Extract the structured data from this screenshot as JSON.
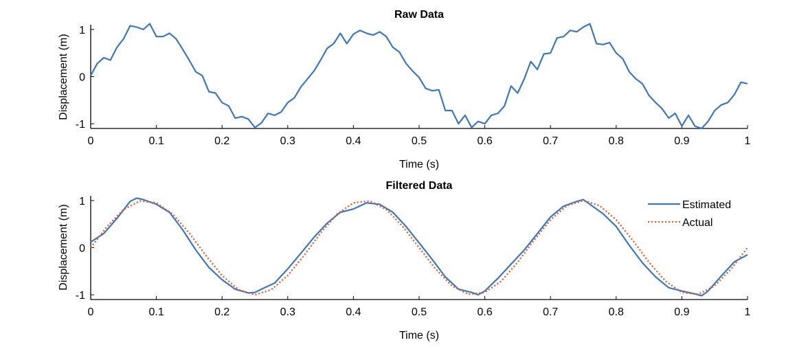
{
  "chart_data": [
    {
      "type": "line",
      "title": "Raw Data",
      "xlabel": "Time (s)",
      "ylabel": "Displacement (m)",
      "xlim": [
        0,
        1
      ],
      "ylim": [
        -1.1,
        1.1
      ],
      "xticks": [
        "0",
        "0.1",
        "0.2",
        "0.3",
        "0.4",
        "0.5",
        "0.6",
        "0.7",
        "0.8",
        "0.9",
        "1"
      ],
      "yticks": [
        "-1",
        "0",
        "1"
      ],
      "grid": false,
      "colors": {
        "series": "#3b76bf"
      },
      "series": [
        {
          "x": [
            0,
            0.01,
            0.02,
            0.03,
            0.04,
            0.05,
            0.06,
            0.07,
            0.08,
            0.09,
            0.1,
            0.11,
            0.12,
            0.13,
            0.14,
            0.15,
            0.16,
            0.17,
            0.18,
            0.19,
            0.2,
            0.21,
            0.22,
            0.23,
            0.24,
            0.25,
            0.26,
            0.27,
            0.28,
            0.29,
            0.3,
            0.31,
            0.32,
            0.33,
            0.34,
            0.35,
            0.36,
            0.37,
            0.38,
            0.39,
            0.4,
            0.41,
            0.42,
            0.43,
            0.44,
            0.45,
            0.46,
            0.47,
            0.48,
            0.49,
            0.5,
            0.51,
            0.52,
            0.53,
            0.54,
            0.55,
            0.56,
            0.57,
            0.58,
            0.59,
            0.6,
            0.61,
            0.62,
            0.63,
            0.64,
            0.65,
            0.66,
            0.67,
            0.68,
            0.69,
            0.7,
            0.71,
            0.72,
            0.73,
            0.74,
            0.75,
            0.76,
            0.77,
            0.78,
            0.79,
            0.8,
            0.81,
            0.82,
            0.83,
            0.84,
            0.85,
            0.86,
            0.87,
            0.88,
            0.89,
            0.9,
            0.91,
            0.92,
            0.93,
            0.94,
            0.95,
            0.96,
            0.97,
            0.98,
            0.99,
            1.0
          ],
          "y": [
            0.02,
            0.28,
            0.4,
            0.35,
            0.62,
            0.8,
            1.08,
            1.05,
            1.0,
            1.12,
            0.85,
            0.85,
            0.92,
            0.8,
            0.58,
            0.35,
            0.1,
            0.02,
            -0.32,
            -0.35,
            -0.55,
            -0.62,
            -0.88,
            -0.85,
            -0.9,
            -1.08,
            -0.98,
            -0.78,
            -0.82,
            -0.75,
            -0.55,
            -0.45,
            -0.22,
            -0.05,
            0.12,
            0.35,
            0.6,
            0.7,
            0.92,
            0.7,
            0.9,
            0.98,
            0.92,
            0.88,
            0.95,
            0.85,
            0.62,
            0.52,
            0.28,
            0.12,
            -0.02,
            -0.25,
            -0.3,
            -0.28,
            -0.72,
            -0.72,
            -1.0,
            -0.82,
            -1.08,
            -0.95,
            -1.0,
            -0.82,
            -0.78,
            -0.62,
            -0.2,
            -0.35,
            -0.05,
            0.32,
            0.15,
            0.48,
            0.5,
            0.82,
            0.85,
            0.98,
            0.95,
            1.05,
            1.12,
            0.7,
            0.68,
            0.72,
            0.5,
            0.38,
            0.1,
            -0.05,
            -0.15,
            -0.4,
            -0.55,
            -0.68,
            -0.88,
            -0.78,
            -1.05,
            -0.82,
            -1.05,
            -1.1,
            -0.95,
            -0.72,
            -0.6,
            -0.55,
            -0.38,
            -0.12,
            -0.15
          ]
        }
      ]
    },
    {
      "type": "line",
      "title": "Filtered Data",
      "xlabel": "Time (s)",
      "ylabel": "Displacement (m)",
      "xlim": [
        0,
        1
      ],
      "ylim": [
        -1.1,
        1.1
      ],
      "xticks": [
        "0",
        "0.1",
        "0.2",
        "0.3",
        "0.4",
        "0.5",
        "0.6",
        "0.7",
        "0.8",
        "0.9",
        "1"
      ],
      "yticks": [
        "-1",
        "0",
        "1"
      ],
      "grid": false,
      "legend": {
        "position": "top-right"
      },
      "series": [
        {
          "name": "Estimated",
          "color": "#3b76bf",
          "style": "solid",
          "x": [
            0,
            0.02,
            0.04,
            0.06,
            0.07,
            0.08,
            0.1,
            0.12,
            0.14,
            0.16,
            0.18,
            0.2,
            0.22,
            0.24,
            0.25,
            0.26,
            0.28,
            0.3,
            0.32,
            0.34,
            0.36,
            0.38,
            0.4,
            0.42,
            0.44,
            0.46,
            0.48,
            0.5,
            0.52,
            0.54,
            0.56,
            0.58,
            0.59,
            0.6,
            0.62,
            0.64,
            0.66,
            0.68,
            0.7,
            0.72,
            0.74,
            0.75,
            0.76,
            0.78,
            0.8,
            0.82,
            0.84,
            0.86,
            0.88,
            0.9,
            0.92,
            0.93,
            0.94,
            0.96,
            0.98,
            1.0
          ],
          "y": [
            0.12,
            0.3,
            0.62,
            0.98,
            1.05,
            1.02,
            0.92,
            0.75,
            0.38,
            -0.05,
            -0.42,
            -0.68,
            -0.88,
            -0.96,
            -0.95,
            -0.88,
            -0.75,
            -0.45,
            -0.12,
            0.22,
            0.52,
            0.75,
            0.82,
            0.95,
            0.92,
            0.75,
            0.45,
            0.1,
            -0.25,
            -0.62,
            -0.88,
            -0.95,
            -1.0,
            -0.92,
            -0.65,
            -0.35,
            -0.05,
            0.3,
            0.65,
            0.88,
            0.98,
            1.02,
            0.92,
            0.72,
            0.45,
            0.05,
            -0.32,
            -0.62,
            -0.85,
            -0.92,
            -0.98,
            -1.02,
            -0.92,
            -0.6,
            -0.3,
            -0.15
          ]
        },
        {
          "name": "Actual",
          "color": "#e05a2b",
          "style": "dotted",
          "function": "sin(2*pi*3*t)",
          "x": [
            0,
            0.025,
            0.05,
            0.075,
            0.1,
            0.125,
            0.15,
            0.175,
            0.2,
            0.225,
            0.25,
            0.275,
            0.3,
            0.325,
            0.35,
            0.375,
            0.4,
            0.425,
            0.45,
            0.475,
            0.5,
            0.525,
            0.55,
            0.575,
            0.6,
            0.625,
            0.65,
            0.675,
            0.7,
            0.725,
            0.75,
            0.775,
            0.8,
            0.825,
            0.85,
            0.875,
            0.9,
            0.925,
            0.95,
            0.975,
            1.0
          ],
          "y": [
            0,
            0.45,
            0.81,
            0.99,
            0.95,
            0.71,
            0.31,
            -0.16,
            -0.59,
            -0.89,
            -1.0,
            -0.89,
            -0.59,
            -0.16,
            0.31,
            0.71,
            0.95,
            0.99,
            0.81,
            0.45,
            0,
            -0.45,
            -0.81,
            -0.99,
            -0.95,
            -0.71,
            -0.31,
            0.16,
            0.59,
            0.89,
            1.0,
            0.89,
            0.59,
            0.16,
            -0.31,
            -0.71,
            -0.95,
            -0.99,
            -0.81,
            -0.45,
            0
          ]
        }
      ]
    }
  ]
}
